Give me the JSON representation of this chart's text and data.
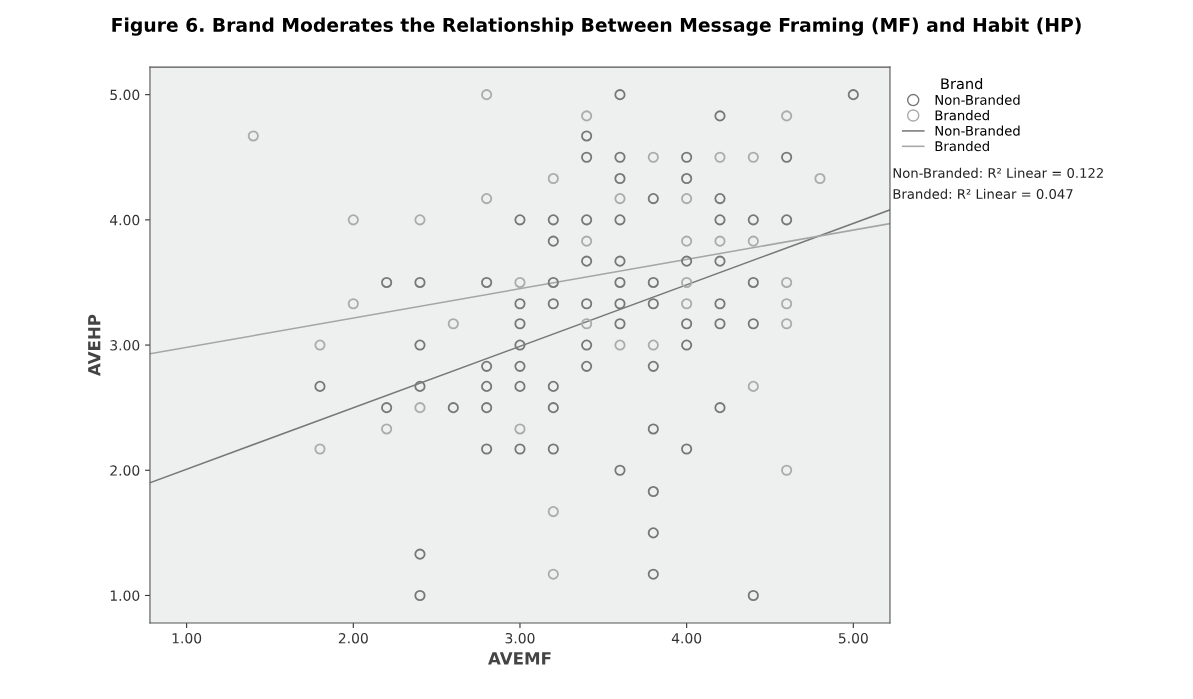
{
  "chart_data": {
    "type": "scatter",
    "title": "Figure 6. Brand Moderates the Relationship Between Message Framing (MF) and Habit (HP)",
    "xlabel": "AVEMF",
    "ylabel": "AVEHP",
    "legend_title": "Brand",
    "xlim": [
      0.78,
      5.22
    ],
    "ylim": [
      0.78,
      5.22
    ],
    "xticks": [
      {
        "value": 1,
        "label": "1.00"
      },
      {
        "value": 2,
        "label": "2.00"
      },
      {
        "value": 3,
        "label": "3.00"
      },
      {
        "value": 4,
        "label": "4.00"
      },
      {
        "value": 5,
        "label": "5.00"
      }
    ],
    "yticks": [
      {
        "value": 1,
        "label": "1.00"
      },
      {
        "value": 2,
        "label": "2.00"
      },
      {
        "value": 3,
        "label": "3.00"
      },
      {
        "value": 4,
        "label": "4.00"
      },
      {
        "value": 5,
        "label": "5.00"
      }
    ],
    "grid": false,
    "legend": "right",
    "series": [
      {
        "name": "Non-Branded",
        "marker": "circle",
        "color": "#777777",
        "x": [
          2.2,
          2.4,
          2.8,
          2.4,
          2.8,
          1.8,
          2.4,
          2.8,
          2.2,
          2.6,
          2.8,
          2.8,
          2.4,
          2.4,
          3.6,
          5.0,
          4.2,
          3.4,
          3.4,
          3.6,
          4.0,
          4.6,
          3.6,
          4.0,
          3.8,
          4.2,
          3.0,
          3.2,
          3.4,
          3.6,
          4.2,
          4.4,
          4.6,
          3.2,
          3.4,
          3.6,
          4.0,
          4.2,
          3.2,
          3.6,
          3.8,
          4.4,
          3.0,
          3.2,
          3.4,
          3.6,
          3.8,
          4.2,
          3.0,
          3.6,
          4.0,
          4.2,
          4.4,
          3.0,
          3.4,
          4.0,
          3.0,
          3.4,
          3.8,
          3.0,
          3.2,
          3.2,
          4.2,
          3.8,
          3.0,
          3.2,
          4.0,
          3.6,
          3.8,
          3.8,
          3.8,
          4.4
        ],
        "values": [
          3.5,
          3.5,
          3.5,
          3.0,
          2.83,
          2.67,
          2.67,
          2.67,
          2.5,
          2.5,
          2.5,
          2.17,
          1.33,
          1.0,
          5.0,
          5.0,
          4.83,
          4.67,
          4.5,
          4.5,
          4.5,
          4.5,
          4.33,
          4.33,
          4.17,
          4.17,
          4.0,
          4.0,
          4.0,
          4.0,
          4.0,
          4.0,
          4.0,
          3.83,
          3.67,
          3.67,
          3.67,
          3.67,
          3.5,
          3.5,
          3.5,
          3.5,
          3.33,
          3.33,
          3.33,
          3.33,
          3.33,
          3.33,
          3.17,
          3.17,
          3.17,
          3.17,
          3.17,
          3.0,
          3.0,
          3.0,
          2.83,
          2.83,
          2.83,
          2.67,
          2.67,
          2.5,
          2.5,
          2.33,
          2.17,
          2.17,
          2.17,
          2.0,
          1.83,
          1.5,
          1.17,
          1.0
        ]
      },
      {
        "name": "Branded",
        "marker": "circle",
        "color": "#ababab",
        "x": [
          1.4,
          2.8,
          2.0,
          2.4,
          2.8,
          2.0,
          2.6,
          1.8,
          2.4,
          2.2,
          1.8,
          3.4,
          4.6,
          3.8,
          4.2,
          4.4,
          3.2,
          4.8,
          3.6,
          4.0,
          3.4,
          4.0,
          4.2,
          4.4,
          3.0,
          4.0,
          4.6,
          4.0,
          4.6,
          3.4,
          4.6,
          3.6,
          3.8,
          4.4,
          3.0,
          4.6,
          3.2,
          3.2
        ],
        "values": [
          4.67,
          5.0,
          4.0,
          4.0,
          4.17,
          3.33,
          3.17,
          3.0,
          2.5,
          2.33,
          2.17,
          4.83,
          4.83,
          4.5,
          4.5,
          4.5,
          4.33,
          4.33,
          4.17,
          4.17,
          3.83,
          3.83,
          3.83,
          3.83,
          3.5,
          3.5,
          3.5,
          3.33,
          3.33,
          3.17,
          3.17,
          3.0,
          3.0,
          2.67,
          2.33,
          2.0,
          1.67,
          1.17
        ]
      },
      {
        "name": "Non-Branded",
        "type": "line",
        "marker": "none",
        "color": "#777777",
        "x": [
          0.78,
          5.22
        ],
        "values": [
          1.9,
          4.08
        ]
      },
      {
        "name": "Branded",
        "type": "line",
        "marker": "none",
        "color": "#a5a5a5",
        "x": [
          0.78,
          5.22
        ],
        "values": [
          2.93,
          3.97
        ]
      }
    ],
    "annotations": [
      "Non-Branded: R² Linear = 0.122",
      "Branded: R² Linear = 0.047"
    ]
  }
}
